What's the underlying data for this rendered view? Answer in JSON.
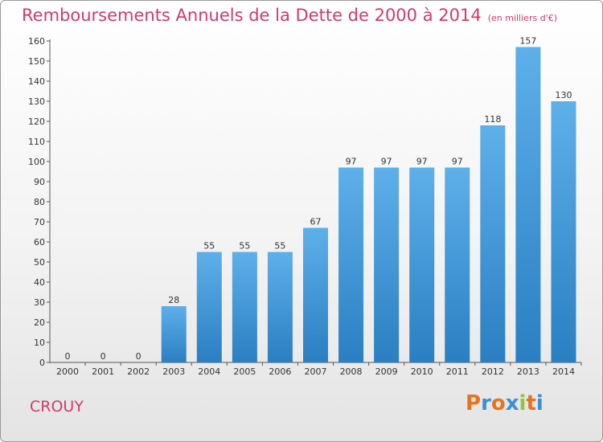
{
  "title": "Remboursements Annuels de la Dette de 2000 à 2014",
  "unit": "(en milliers d'€)",
  "commune": "CROUY",
  "logo": {
    "text": "Proxiti",
    "colors": [
      "#e8731c",
      "#3b8ed8",
      "#e8731c",
      "#3b8ed8",
      "#8cc63f",
      "#e8731c",
      "#3b8ed8"
    ]
  },
  "colors": {
    "bar_top": "#5eb0ea",
    "bar_bottom": "#2a7fc2",
    "title": "#d03a6a"
  },
  "chart_data": {
    "type": "bar",
    "categories": [
      "2000",
      "2001",
      "2002",
      "2003",
      "2004",
      "2005",
      "2006",
      "2007",
      "2008",
      "2009",
      "2010",
      "2011",
      "2012",
      "2013",
      "2014"
    ],
    "values": [
      0,
      0,
      0,
      28,
      55,
      55,
      55,
      67,
      97,
      97,
      97,
      97,
      118,
      157,
      130
    ],
    "ylim": [
      0,
      160
    ],
    "yticks": [
      0,
      10,
      20,
      30,
      40,
      50,
      60,
      70,
      80,
      90,
      100,
      110,
      120,
      130,
      140,
      150,
      160
    ],
    "grid": false
  }
}
